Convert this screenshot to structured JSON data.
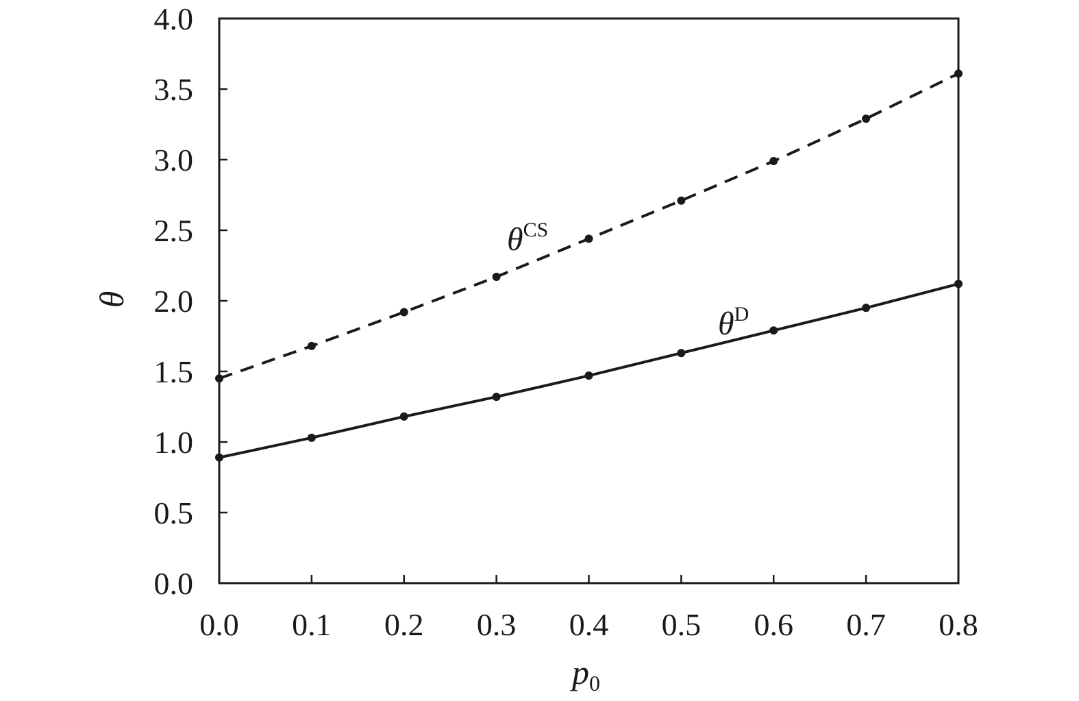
{
  "chart_data": {
    "type": "line",
    "x": [
      0.0,
      0.1,
      0.2,
      0.3,
      0.4,
      0.5,
      0.6,
      0.7,
      0.8
    ],
    "x_tick_labels": [
      "0.0",
      "0.1",
      "0.2",
      "0.3",
      "0.4",
      "0.5",
      "0.6",
      "0.7",
      "0.8"
    ],
    "y_tick_labels": [
      "0.0",
      "0.5",
      "1.0",
      "1.5",
      "2.0",
      "2.5",
      "3.0",
      "3.5",
      "4.0"
    ],
    "xlim": [
      0.0,
      0.8
    ],
    "ylim": [
      0.0,
      4.0
    ],
    "xlabel": {
      "base": "p",
      "sub": "0"
    },
    "ylabel": "θ",
    "grid": false,
    "series": [
      {
        "name": {
          "base": "θ",
          "sup": "CS"
        },
        "style": "dashed",
        "color": "#1a1a1a",
        "values": [
          1.45,
          1.68,
          1.92,
          2.17,
          2.44,
          2.71,
          2.99,
          3.29,
          3.61
        ]
      },
      {
        "name": {
          "base": "θ",
          "sup": "D"
        },
        "style": "solid",
        "color": "#1a1a1a",
        "values": [
          0.89,
          1.03,
          1.18,
          1.32,
          1.47,
          1.63,
          1.79,
          1.95,
          2.12
        ]
      }
    ]
  }
}
